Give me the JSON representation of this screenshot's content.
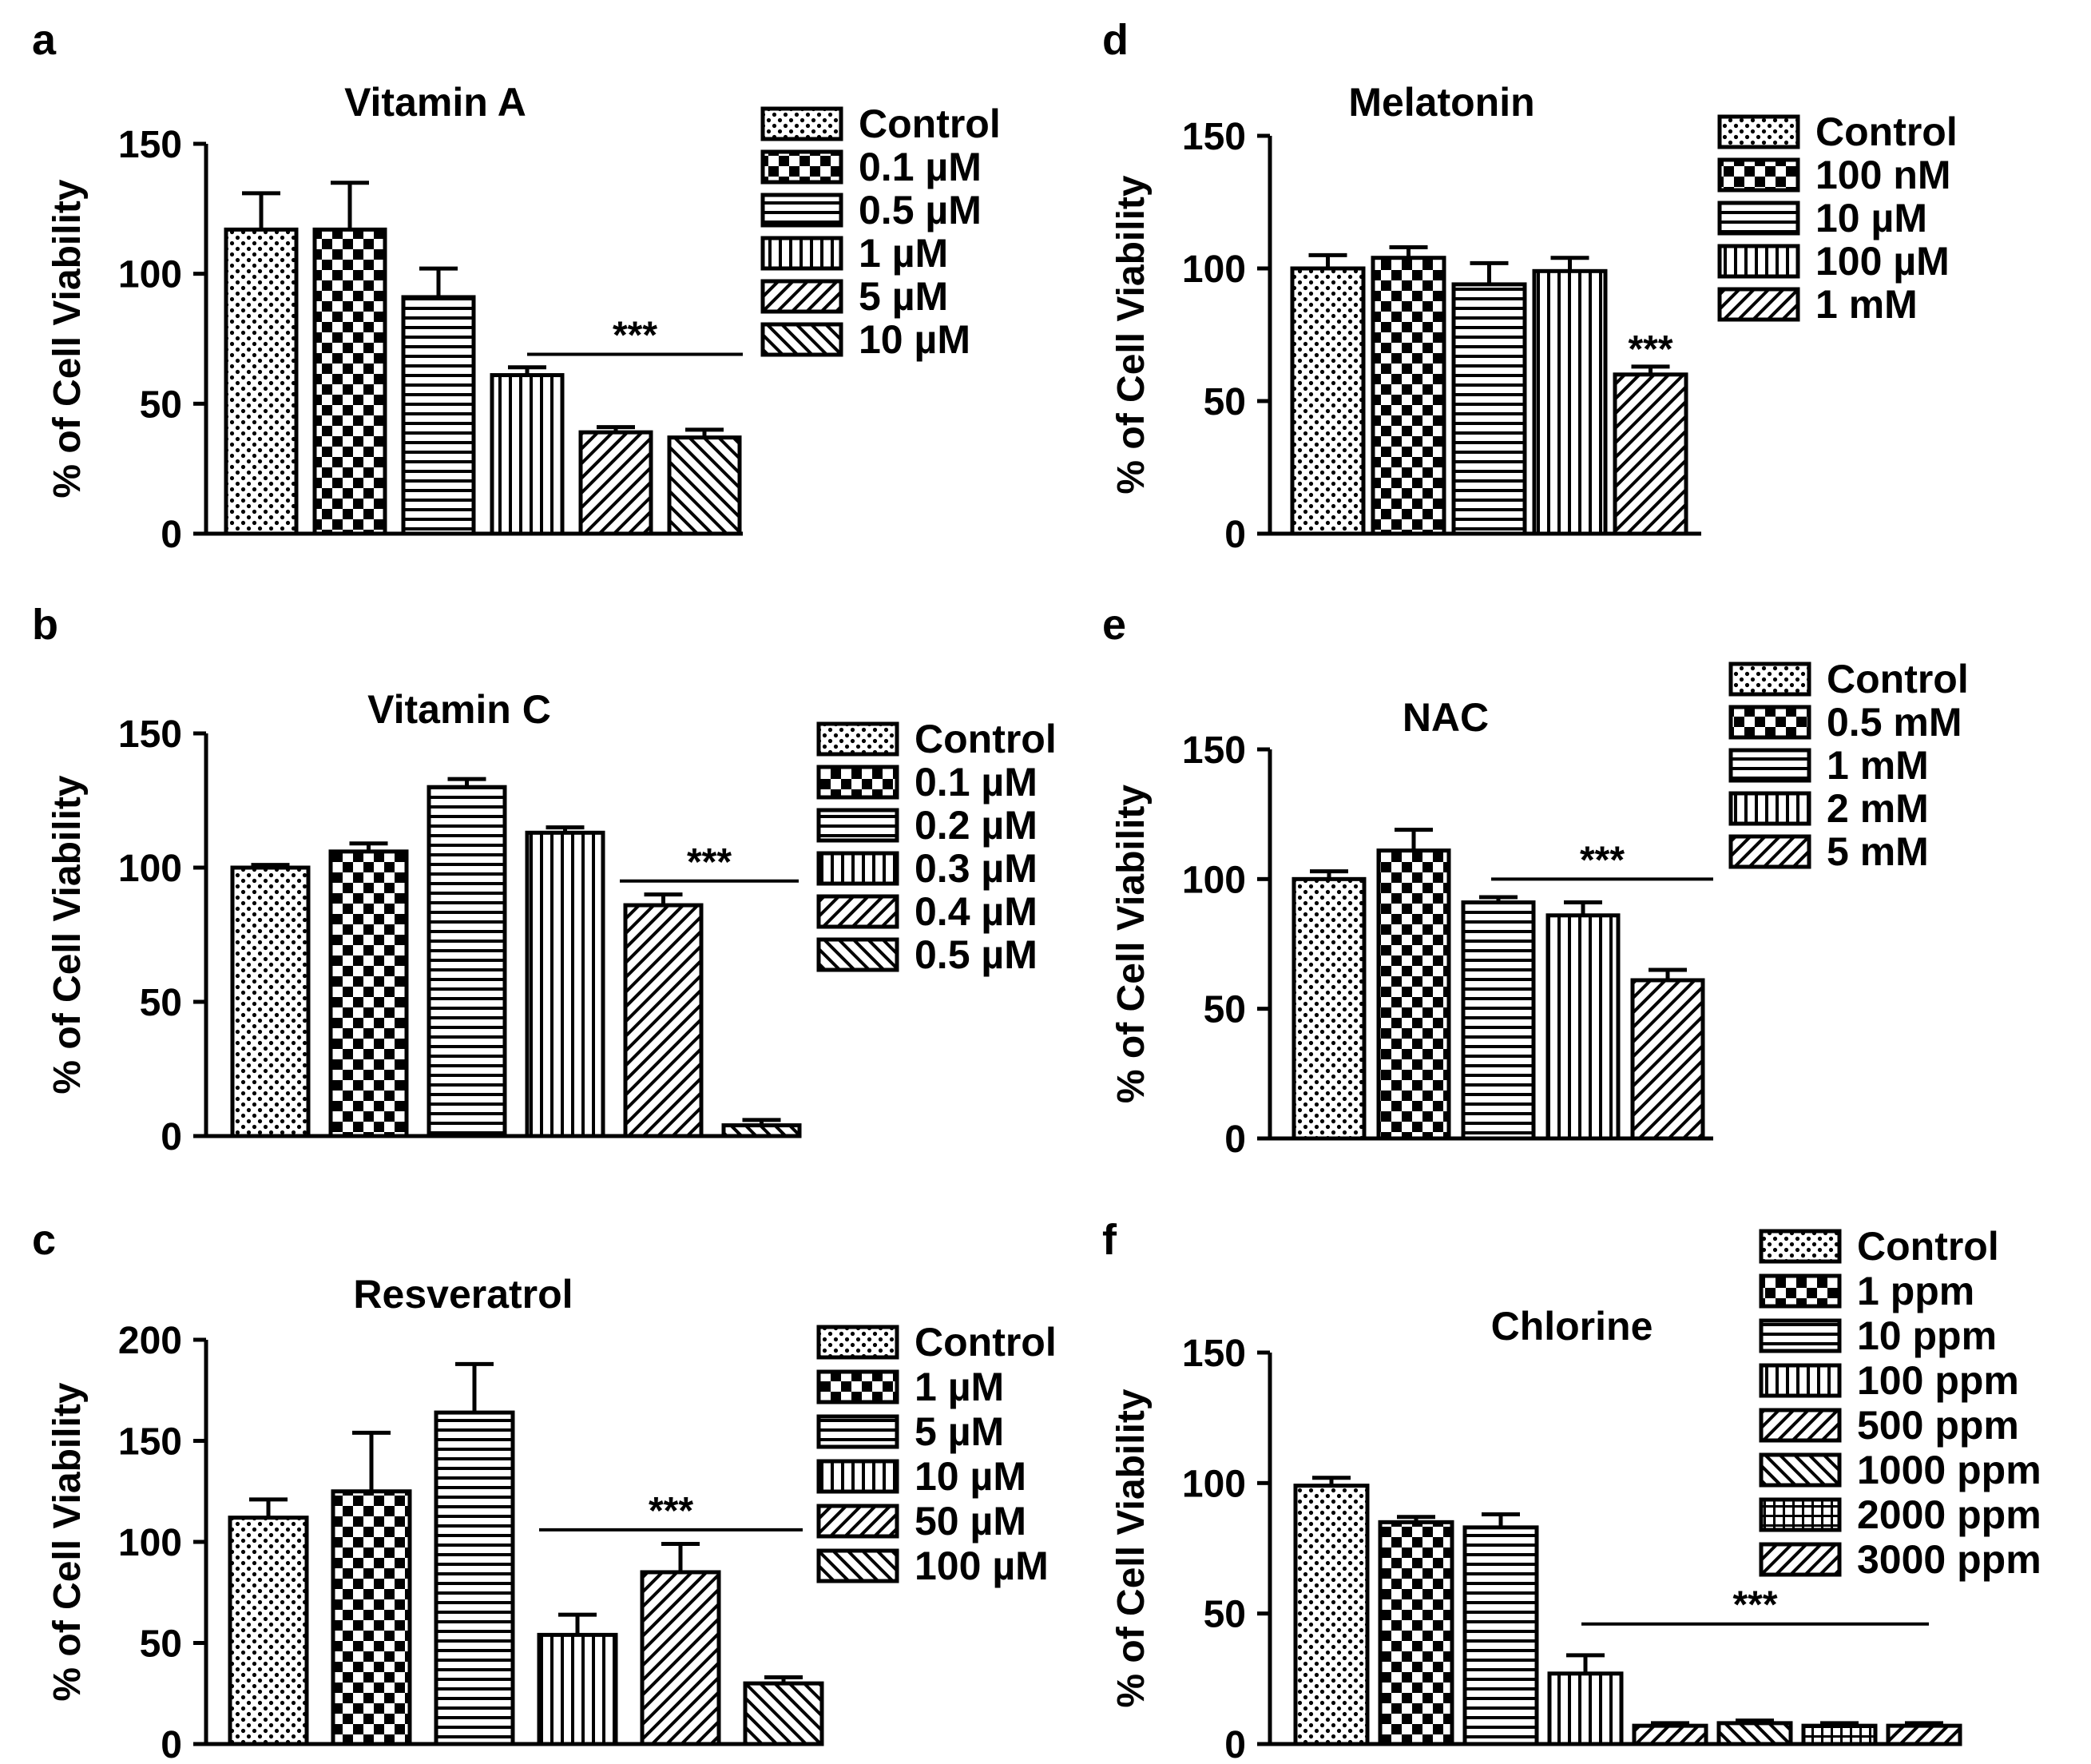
{
  "figure": {
    "background": "#ffffff",
    "ink": "#000000",
    "significance_marker": "***"
  },
  "chart_data": [
    {
      "panel": "a",
      "type": "bar",
      "title": "Vitamin A",
      "ylabel": "% of Cell Viability",
      "xlabel": "",
      "ylim": [
        0,
        150
      ],
      "yticks": [
        0,
        50,
        100,
        150
      ],
      "categories": [
        "Control",
        "0.1 µM",
        "0.5 µM",
        "1 µM",
        "5 µM",
        "10 µM"
      ],
      "values": [
        117,
        117,
        91,
        61,
        39,
        37
      ],
      "errors": [
        14,
        18,
        11,
        3,
        2,
        3
      ],
      "patterns": [
        "dots",
        "checker",
        "hstripe",
        "vstripe",
        "diag-fwd",
        "diag-back"
      ],
      "significance": {
        "label": "***",
        "from": 3,
        "to": 5,
        "y": 69
      },
      "legend_position": "top-right"
    },
    {
      "panel": "b",
      "type": "bar",
      "title": "Vitamin C",
      "ylabel": "% of Cell Viability",
      "xlabel": "",
      "ylim": [
        0,
        150
      ],
      "yticks": [
        0,
        50,
        100,
        150
      ],
      "categories": [
        "Control",
        "0.1 µM",
        "0.2 µM",
        "0.3 µM",
        "0.4 µM",
        "0.5 µM"
      ],
      "values": [
        100,
        106,
        130,
        113,
        86,
        4
      ],
      "errors": [
        1,
        3,
        3,
        2,
        4,
        2
      ],
      "patterns": [
        "dots",
        "checker",
        "hstripe",
        "vstripe",
        "diag-fwd",
        "diag-back"
      ],
      "significance": {
        "label": "***",
        "from": 4,
        "to": 5,
        "y": 95
      },
      "legend_position": "top-right"
    },
    {
      "panel": "c",
      "type": "bar",
      "title": "Resveratrol",
      "ylabel": "% of Cell Viability",
      "xlabel": "",
      "ylim": [
        0,
        200
      ],
      "yticks": [
        0,
        50,
        100,
        150,
        200
      ],
      "categories": [
        "Control",
        "1 µM",
        "5 µM",
        "10 µM",
        "50 µM",
        "100 µM"
      ],
      "values": [
        112,
        125,
        164,
        54,
        85,
        30
      ],
      "errors": [
        9,
        29,
        24,
        10,
        14,
        3
      ],
      "patterns": [
        "dots",
        "checker",
        "hstripe",
        "vstripe",
        "diag-fwd",
        "diag-back"
      ],
      "significance": {
        "label": "***",
        "from": 3,
        "to": 5,
        "y": 106
      },
      "legend_position": "top-right"
    },
    {
      "panel": "d",
      "type": "bar",
      "title": "Melatonin",
      "ylabel": "% of Cell Viability",
      "xlabel": "",
      "ylim": [
        0,
        150
      ],
      "yticks": [
        0,
        50,
        100,
        150
      ],
      "categories": [
        "Control",
        "100 nM",
        "10 µM",
        "100 µM",
        "1 mM"
      ],
      "values": [
        100,
        104,
        94,
        99,
        60
      ],
      "errors": [
        5,
        4,
        8,
        5,
        3
      ],
      "patterns": [
        "dots",
        "checker",
        "hstripe",
        "vstripe",
        "diag-fwd"
      ],
      "significance": {
        "label": "***",
        "from": 4,
        "to": 4,
        "y": null
      },
      "legend_position": "top-right"
    },
    {
      "panel": "e",
      "type": "bar",
      "title": "NAC",
      "ylabel": "% of Cell Viability",
      "xlabel": "",
      "ylim": [
        0,
        150
      ],
      "yticks": [
        0,
        50,
        100,
        150
      ],
      "categories": [
        "Control",
        "0.5 mM",
        "1 mM",
        "2 mM",
        "5 mM"
      ],
      "values": [
        100,
        111,
        91,
        86,
        61
      ],
      "errors": [
        3,
        8,
        2,
        5,
        4
      ],
      "patterns": [
        "dots",
        "checker",
        "hstripe",
        "vstripe",
        "diag-fwd"
      ],
      "significance": {
        "label": "***",
        "from": 2,
        "to": 4,
        "y": 100
      },
      "legend_position": "top-right"
    },
    {
      "panel": "f",
      "type": "bar",
      "title": "Chlorine",
      "ylabel": "% of Cell Viability",
      "xlabel": "",
      "ylim": [
        0,
        150
      ],
      "yticks": [
        0,
        50,
        100,
        150
      ],
      "categories": [
        "Control",
        "1 ppm",
        "10 ppm",
        "100 ppm",
        "500 ppm",
        "1000 ppm",
        "2000 ppm",
        "3000 ppm"
      ],
      "values": [
        99,
        85,
        83,
        27,
        7,
        8,
        7,
        7
      ],
      "errors": [
        3,
        2,
        5,
        7,
        1,
        1,
        1,
        1
      ],
      "patterns": [
        "dots",
        "checker",
        "hstripe",
        "vstripe",
        "diag-fwd",
        "diag-back",
        "grid",
        "diag-fwd"
      ],
      "significance": {
        "label": "***",
        "from": 3,
        "to": 7,
        "y": 46
      },
      "legend_position": "top-right"
    }
  ]
}
